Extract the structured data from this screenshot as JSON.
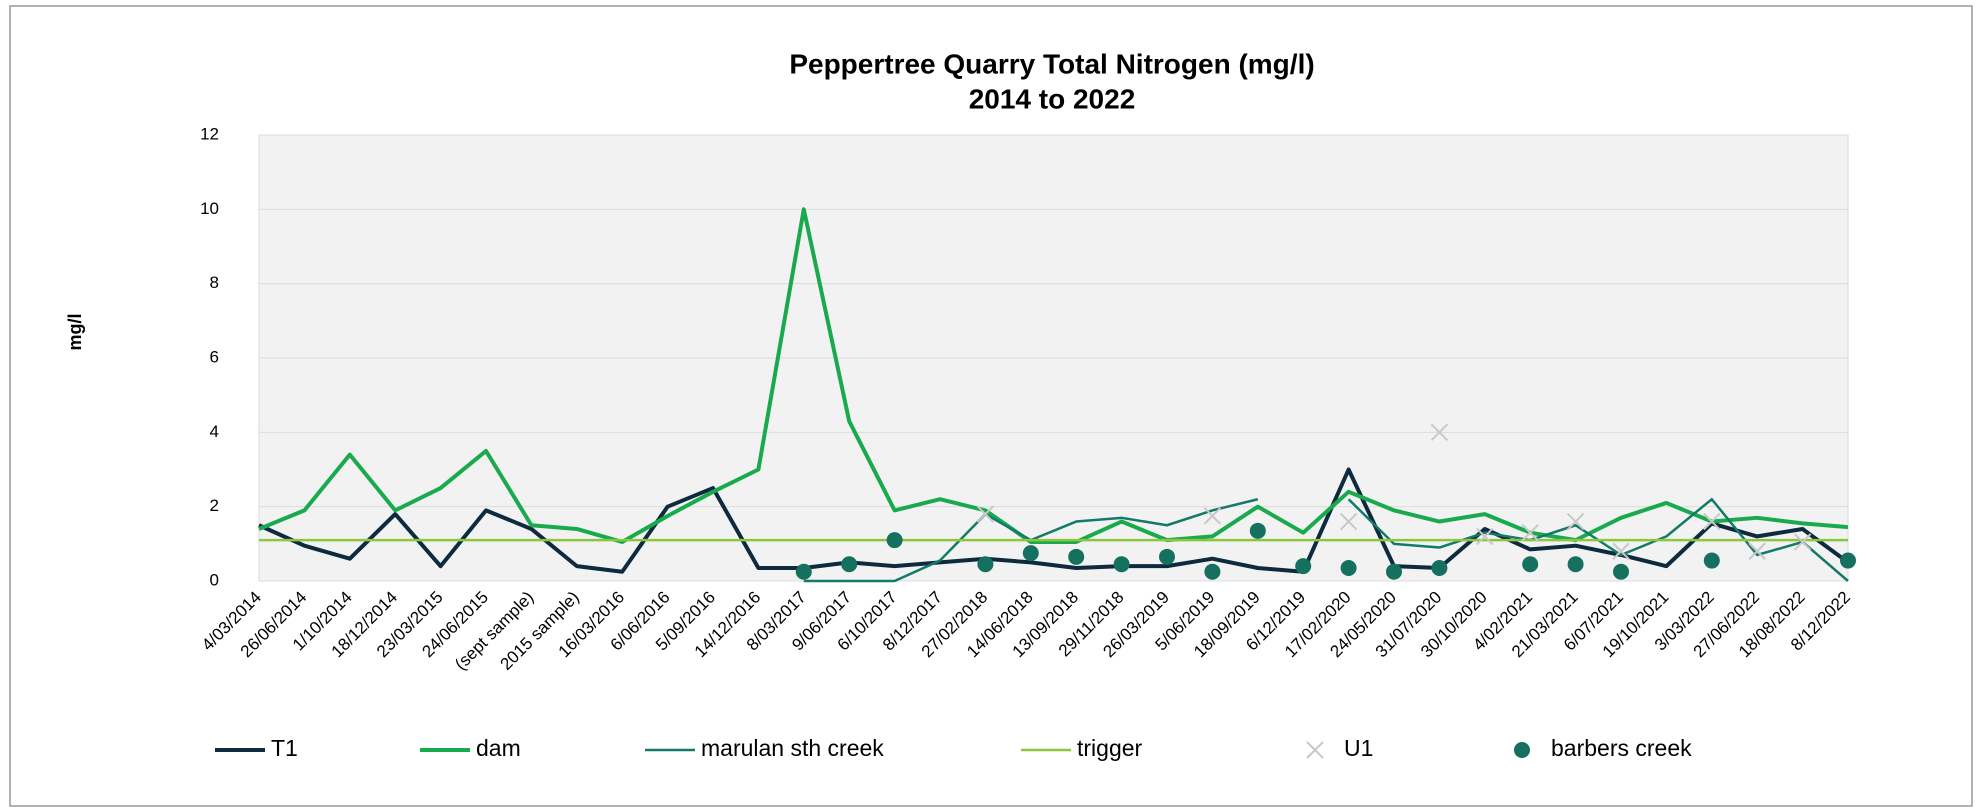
{
  "chart_data": {
    "type": "line",
    "title": "Peppertree Quarry Total Nitrogen  (mg/l)",
    "subtitle": "2014 to 2022",
    "y_label": "mg/l",
    "categories": [
      "4/03/2014",
      "26/06/2014",
      "1/10/2014",
      "18/12/2014",
      "23/03/2015",
      "24/06/2015",
      "(sept sample)",
      "2015 sample)",
      "16/03/2016",
      "6/06/2016",
      "5/09/2016",
      "14/12/2016",
      "8/03/2017",
      "9/06/2017",
      "6/10/2017",
      "8/12/2017",
      "27/02/2018",
      "14/06/2018",
      "13/09/2018",
      "29/11/2018",
      "26/03/2019",
      "5/06/2019",
      "18/09/2019",
      "6/12/2019",
      "17/02/2020",
      "24/05/2020",
      "31/07/2020",
      "30/10/2020",
      "4/02/2021",
      "21/03/2021",
      "6/07/2021",
      "19/10/2021",
      "3/03/2022",
      "27/06/2022",
      "18/08/2022",
      "8/12/2022"
    ],
    "ylim": [
      0,
      12
    ],
    "yticks": [
      0,
      2,
      4,
      6,
      8,
      10,
      12
    ],
    "grid": true,
    "series": [
      {
        "name": "T1",
        "color": "#0d2a3f",
        "mark": "line",
        "width": 4,
        "values": [
          1.5,
          0.95,
          0.6,
          1.8,
          0.4,
          1.9,
          1.4,
          0.4,
          0.25,
          2.0,
          2.5,
          0.35,
          0.35,
          0.5,
          0.4,
          0.5,
          0.6,
          0.5,
          0.35,
          0.4,
          0.4,
          0.6,
          0.35,
          0.25,
          3.0,
          0.4,
          0.35,
          1.4,
          0.85,
          0.95,
          0.7,
          0.4,
          1.55,
          1.2,
          1.4,
          0.5
        ]
      },
      {
        "name": "dam",
        "color": "#1aaa4e",
        "mark": "line",
        "width": 4,
        "values": [
          1.4,
          1.9,
          3.4,
          1.9,
          2.5,
          3.5,
          1.5,
          1.4,
          1.05,
          1.75,
          2.4,
          3.0,
          10,
          4.3,
          1.9,
          2.2,
          1.9,
          1.05,
          1.05,
          1.6,
          1.1,
          1.2,
          2.0,
          1.3,
          2.4,
          1.9,
          1.6,
          1.8,
          1.3,
          1.1,
          1.7,
          2.1,
          1.6,
          1.7,
          1.55,
          1.45
        ]
      },
      {
        "name": "marulan sth creek",
        "color": "#137a6a",
        "mark": "line",
        "width": 2.5,
        "values": [
          null,
          null,
          null,
          null,
          null,
          null,
          null,
          null,
          null,
          null,
          null,
          null,
          0,
          0,
          0,
          0.55,
          1.8,
          1.1,
          1.6,
          1.7,
          1.5,
          1.9,
          2.2,
          null,
          2.2,
          1.0,
          0.9,
          1.3,
          1.1,
          1.5,
          0.7,
          1.2,
          2.2,
          0.7,
          1.05,
          0
        ]
      },
      {
        "name": "trigger",
        "color": "#8cc63f",
        "mark": "line",
        "width": 2.5,
        "values": [
          1.1,
          1.1,
          1.1,
          1.1,
          1.1,
          1.1,
          1.1,
          1.1,
          1.1,
          1.1,
          1.1,
          1.1,
          1.1,
          1.1,
          1.1,
          1.1,
          1.1,
          1.1,
          1.1,
          1.1,
          1.1,
          1.1,
          1.1,
          1.1,
          1.1,
          1.1,
          1.1,
          1.1,
          1.1,
          1.1,
          1.1,
          1.1,
          1.1,
          1.1,
          1.1,
          1.1
        ]
      },
      {
        "name": "U1",
        "color": "#c8c8c8",
        "mark": "x",
        "values": [
          null,
          null,
          null,
          null,
          null,
          null,
          null,
          null,
          null,
          null,
          null,
          null,
          null,
          null,
          null,
          null,
          1.8,
          null,
          null,
          null,
          null,
          1.75,
          null,
          null,
          1.6,
          null,
          4.0,
          1.2,
          1.3,
          1.6,
          0.8,
          null,
          1.6,
          0.8,
          1.05,
          null
        ]
      },
      {
        "name": "barbers creek",
        "color": "#16705f",
        "mark": "dot",
        "values": [
          null,
          null,
          null,
          null,
          null,
          null,
          null,
          null,
          null,
          null,
          null,
          null,
          0.25,
          0.45,
          1.1,
          null,
          0.45,
          0.75,
          0.65,
          0.45,
          0.65,
          0.25,
          1.35,
          0.4,
          0.35,
          0.25,
          0.35,
          null,
          0.45,
          0.45,
          0.25,
          null,
          0.55,
          null,
          null,
          0.55
        ]
      }
    ]
  }
}
